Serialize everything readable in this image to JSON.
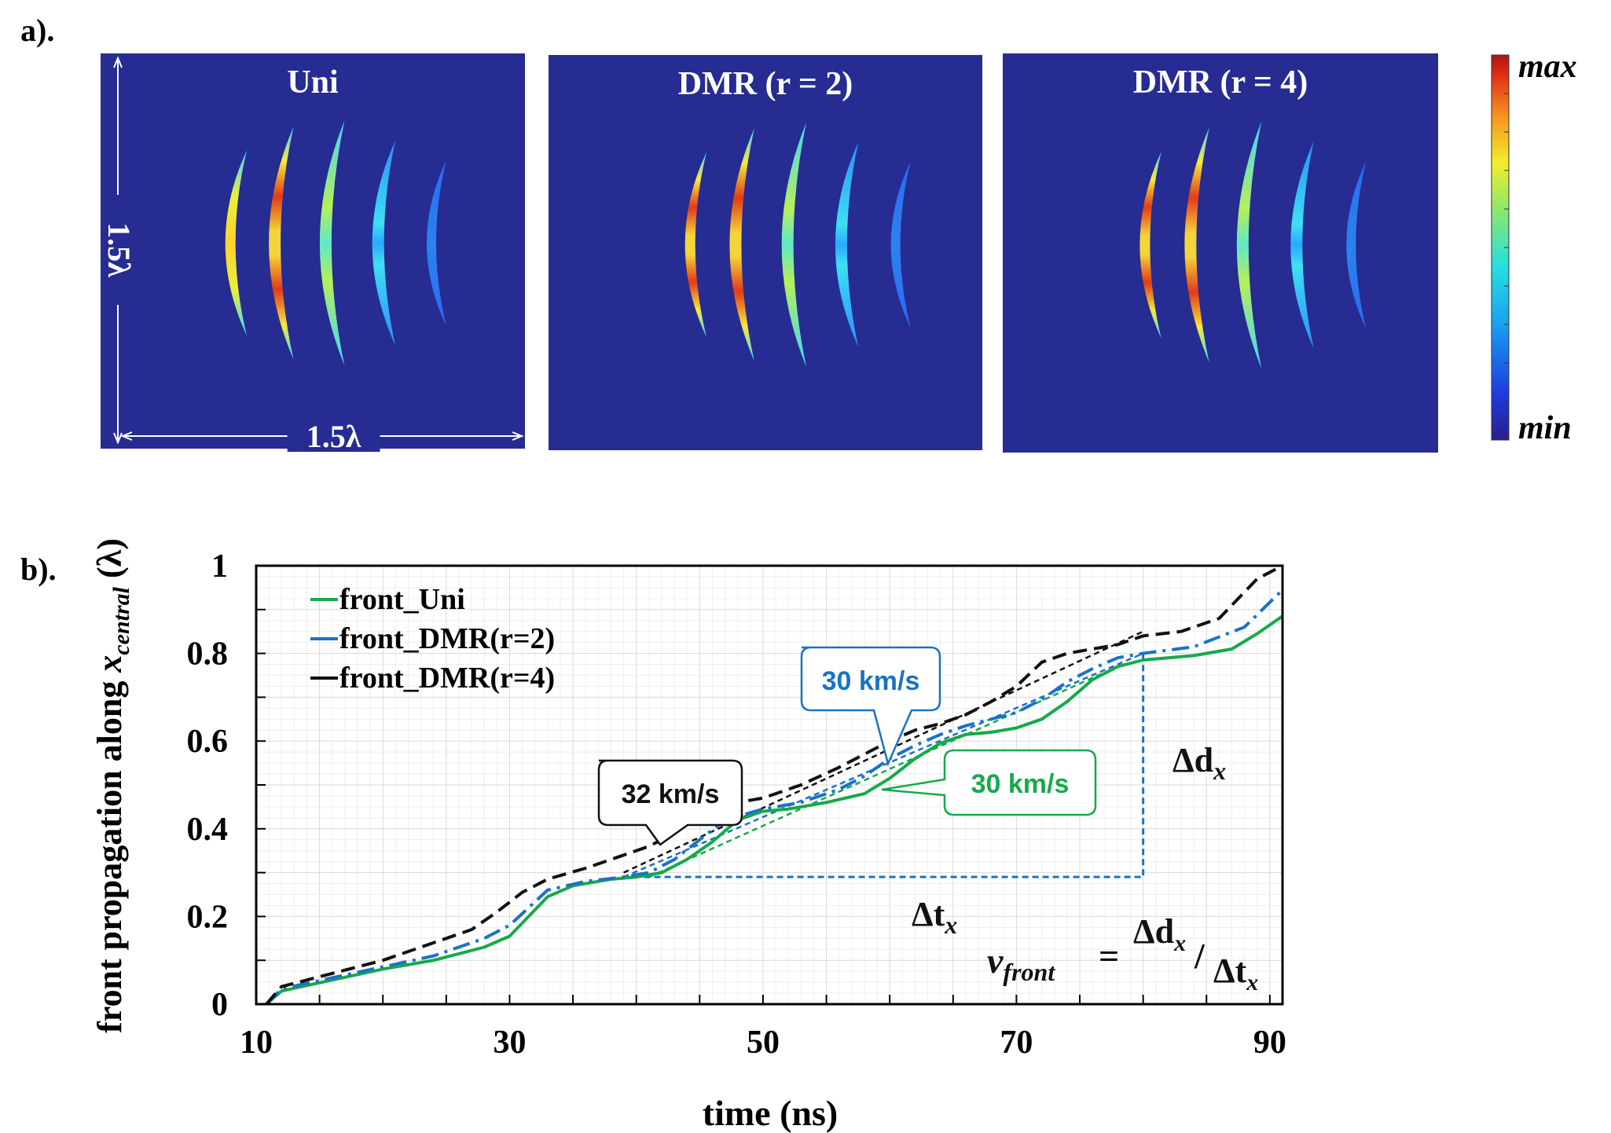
{
  "panel_a": {
    "label": "a).",
    "panels": [
      {
        "title": "Uni",
        "peak": "outer"
      },
      {
        "title": "DMR (r = 2)",
        "peak": "leading"
      },
      {
        "title": "DMR (r = 4)",
        "peak": "leading"
      }
    ],
    "scale_label_vertical": "1.5λ",
    "scale_label_horizontal": "1.5λ",
    "colorbar": {
      "max_label": "max",
      "min_label": "min"
    },
    "colors": {
      "background": "#262c91"
    }
  },
  "chart_data": {
    "type": "line",
    "label": "b).",
    "xlabel": "time (ns)",
    "ylabel": "front propagation along x_central (λ)",
    "ylabel_main": "front propagation along ",
    "ylabel_var": "x",
    "ylabel_sub": "central",
    "ylabel_unit": " (λ)",
    "xlim": [
      10,
      91
    ],
    "ylim": [
      0,
      1
    ],
    "xticks": [
      10,
      30,
      50,
      70,
      90
    ],
    "yticks": [
      0,
      0.2,
      0.4,
      0.6,
      0.8,
      1
    ],
    "ytick_labels": [
      "0",
      "0.2",
      "0.4",
      "0.6",
      "0.8",
      "1"
    ],
    "grid": true,
    "legend_position": "top-left",
    "series": [
      {
        "name": "front_Uni",
        "color": "#17a94a",
        "style": "solid",
        "points": [
          [
            10.8,
            0
          ],
          [
            12,
            0.03
          ],
          [
            16,
            0.055
          ],
          [
            20,
            0.08
          ],
          [
            24,
            0.1
          ],
          [
            28,
            0.13
          ],
          [
            30,
            0.155
          ],
          [
            31.5,
            0.2
          ],
          [
            33,
            0.245
          ],
          [
            35,
            0.27
          ],
          [
            38,
            0.285
          ],
          [
            40,
            0.29
          ],
          [
            42,
            0.3
          ],
          [
            44,
            0.33
          ],
          [
            46,
            0.37
          ],
          [
            48,
            0.42
          ],
          [
            50,
            0.44
          ],
          [
            52,
            0.445
          ],
          [
            55,
            0.46
          ],
          [
            58,
            0.48
          ],
          [
            60,
            0.515
          ],
          [
            62,
            0.56
          ],
          [
            64,
            0.595
          ],
          [
            66,
            0.615
          ],
          [
            68,
            0.62
          ],
          [
            70,
            0.63
          ],
          [
            72,
            0.65
          ],
          [
            74,
            0.69
          ],
          [
            76,
            0.74
          ],
          [
            78,
            0.77
          ],
          [
            80,
            0.785
          ],
          [
            84,
            0.795
          ],
          [
            87,
            0.81
          ],
          [
            89,
            0.845
          ],
          [
            91,
            0.885
          ]
        ]
      },
      {
        "name": "front_DMR(r=2)",
        "color": "#1a73c4",
        "style": "dashdot",
        "points": [
          [
            10.8,
            0
          ],
          [
            12,
            0.035
          ],
          [
            16,
            0.06
          ],
          [
            20,
            0.085
          ],
          [
            24,
            0.11
          ],
          [
            28,
            0.15
          ],
          [
            30,
            0.18
          ],
          [
            31.5,
            0.22
          ],
          [
            33,
            0.26
          ],
          [
            36,
            0.28
          ],
          [
            39,
            0.29
          ],
          [
            41,
            0.3
          ],
          [
            43,
            0.33
          ],
          [
            45,
            0.375
          ],
          [
            47,
            0.42
          ],
          [
            50,
            0.445
          ],
          [
            53,
            0.46
          ],
          [
            56,
            0.49
          ],
          [
            58,
            0.52
          ],
          [
            60,
            0.56
          ],
          [
            62,
            0.59
          ],
          [
            64,
            0.615
          ],
          [
            66,
            0.635
          ],
          [
            68,
            0.65
          ],
          [
            70,
            0.665
          ],
          [
            72,
            0.695
          ],
          [
            74,
            0.735
          ],
          [
            76,
            0.765
          ],
          [
            78,
            0.79
          ],
          [
            80,
            0.8
          ],
          [
            84,
            0.815
          ],
          [
            88,
            0.86
          ],
          [
            91,
            0.945
          ]
        ]
      },
      {
        "name": "front_DMR(r=4)",
        "color": "#111111",
        "style": "dashed",
        "points": [
          [
            10.8,
            0
          ],
          [
            12,
            0.04
          ],
          [
            16,
            0.07
          ],
          [
            20,
            0.1
          ],
          [
            24,
            0.14
          ],
          [
            27,
            0.17
          ],
          [
            29,
            0.21
          ],
          [
            31,
            0.255
          ],
          [
            33,
            0.285
          ],
          [
            36,
            0.31
          ],
          [
            39,
            0.34
          ],
          [
            41,
            0.36
          ],
          [
            43,
            0.39
          ],
          [
            45,
            0.43
          ],
          [
            47,
            0.455
          ],
          [
            50,
            0.47
          ],
          [
            53,
            0.5
          ],
          [
            56,
            0.54
          ],
          [
            58,
            0.57
          ],
          [
            60,
            0.6
          ],
          [
            62,
            0.625
          ],
          [
            64,
            0.64
          ],
          [
            66,
            0.66
          ],
          [
            68,
            0.69
          ],
          [
            70,
            0.725
          ],
          [
            72,
            0.78
          ],
          [
            74,
            0.8
          ],
          [
            76,
            0.81
          ],
          [
            78,
            0.82
          ],
          [
            80,
            0.84
          ],
          [
            83,
            0.85
          ],
          [
            86,
            0.88
          ],
          [
            89,
            0.97
          ],
          [
            91,
            1.0
          ]
        ]
      }
    ],
    "fit_lines": [
      {
        "color": "#111111",
        "points": [
          [
            39,
            0.3
          ],
          [
            80,
            0.85
          ]
        ]
      },
      {
        "color": "#1a73c4",
        "points": [
          [
            39,
            0.29
          ],
          [
            80,
            0.8
          ]
        ]
      },
      {
        "color": "#17a94a",
        "points": [
          [
            41,
            0.29
          ],
          [
            78,
            0.77
          ]
        ]
      }
    ],
    "delta_box": {
      "x0": 39,
      "x1": 80,
      "y0": 0.29,
      "y1": 0.8,
      "color": "#1a73c4"
    },
    "annotations": [
      {
        "text": "32 km/s",
        "color": "#111111"
      },
      {
        "text": "30 km/s",
        "color": "#1a73c4"
      },
      {
        "text": "30 km/s",
        "color": "#17a94a"
      }
    ],
    "delta_d_label": "Δd",
    "delta_t_label": "Δt",
    "delta_sub": "x",
    "v_front_label": "v",
    "v_front_sub": "front",
    "equals": "=",
    "formula_num": "Δd",
    "formula_num_sub": "x",
    "formula_den": "Δt",
    "formula_den_sub": "x",
    "formula_slash": "/"
  }
}
